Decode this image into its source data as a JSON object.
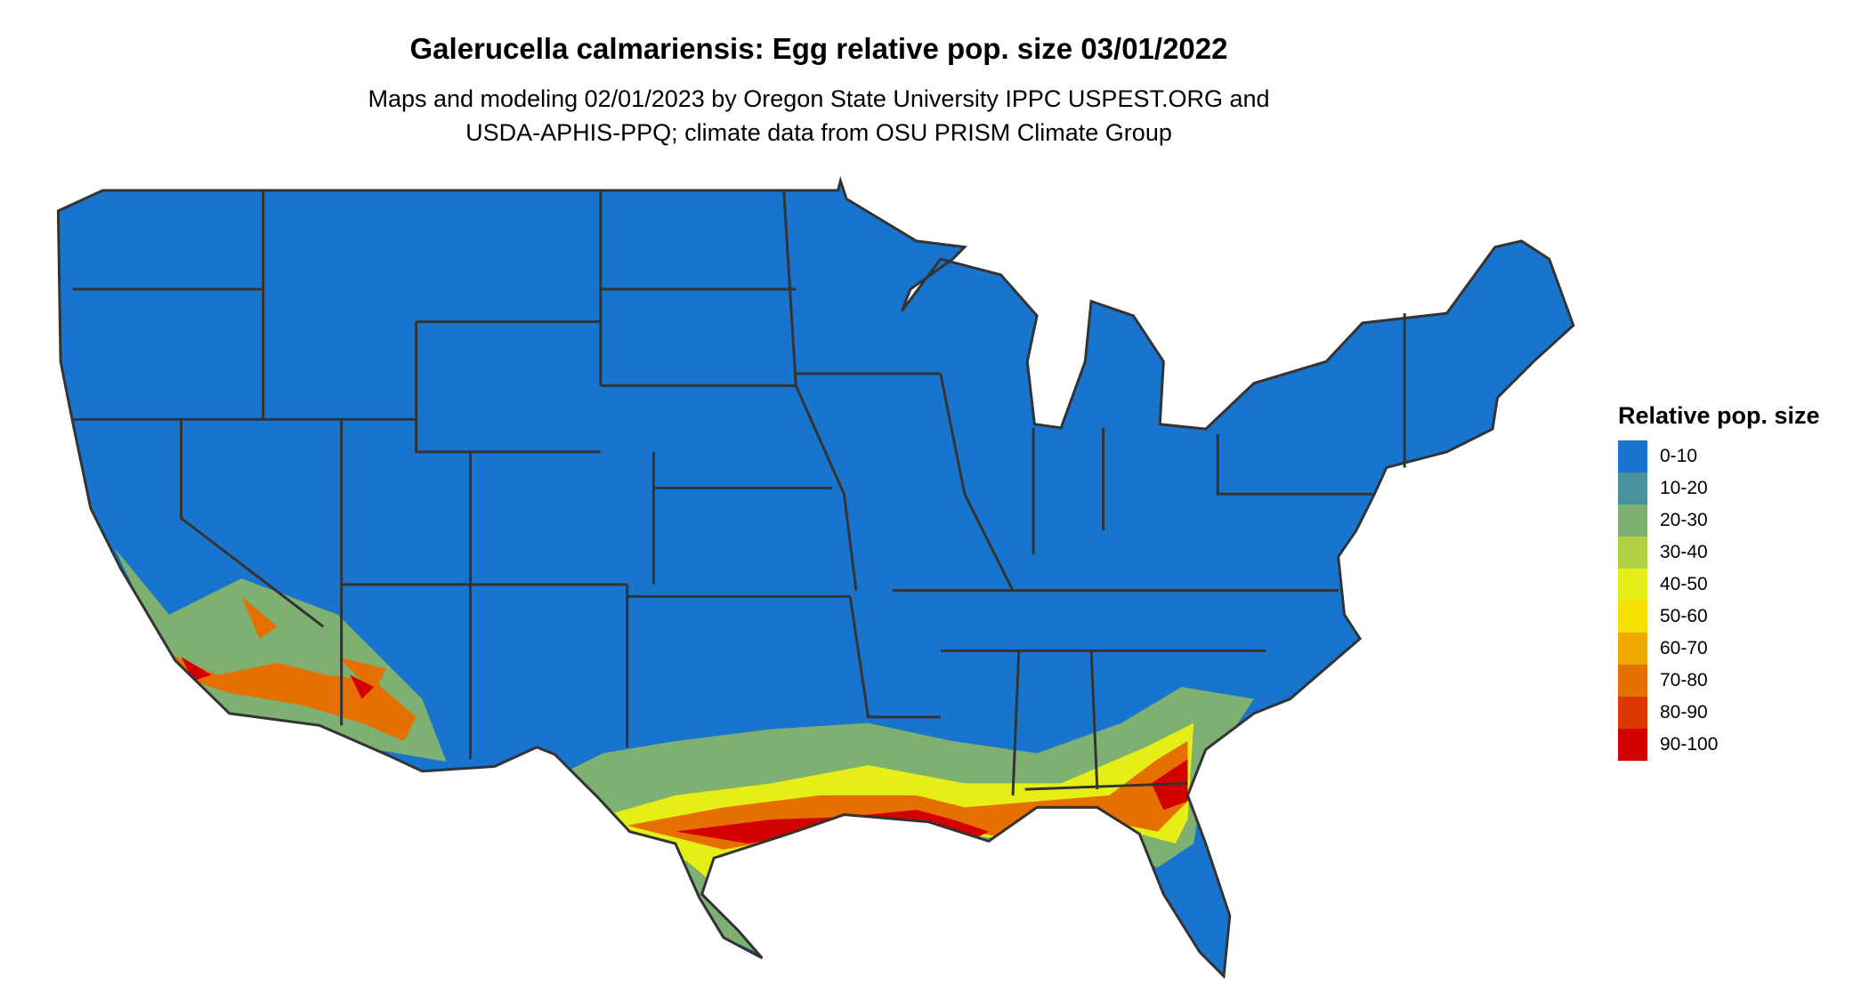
{
  "title": "Galerucella calmariensis: Egg relative pop. size 03/01/2022",
  "subtitle_lines": [
    "Maps and modeling 02/01/2023 by Oregon State University IPPC USPEST.ORG and",
    "USDA-APHIS-PPQ; climate data from OSU PRISM Climate Group"
  ],
  "map": {
    "region": "Contiguous United States",
    "background_class": "0-10",
    "high_value_regions": [
      "Southern California",
      "Southern Arizona",
      "Gulf Coast",
      "Southeast Texas",
      "Louisiana",
      "Northern Florida",
      "Southeastern Georgia"
    ],
    "border_color": "#333333"
  },
  "legend": {
    "title": "Relative pop. size",
    "items": [
      {
        "label": "0-10",
        "color": "#1874CD"
      },
      {
        "label": "10-20",
        "color": "#4A919E"
      },
      {
        "label": "20-30",
        "color": "#7EB072"
      },
      {
        "label": "30-40",
        "color": "#B2D044"
      },
      {
        "label": "40-50",
        "color": "#E5EE16"
      },
      {
        "label": "50-60",
        "color": "#F7E000"
      },
      {
        "label": "60-70",
        "color": "#EFA800"
      },
      {
        "label": "70-80",
        "color": "#E57000"
      },
      {
        "label": "80-90",
        "color": "#DC3800"
      },
      {
        "label": "90-100",
        "color": "#D20000"
      }
    ]
  }
}
